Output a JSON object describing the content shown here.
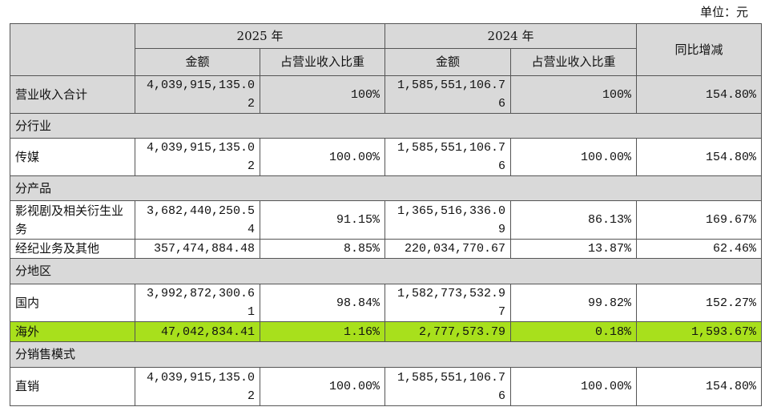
{
  "unit": "单位：元",
  "table": {
    "header": {
      "year1": "2025 年",
      "year2": "2024 年",
      "change": "同比增减",
      "amount1": "金额",
      "share1": "占营业收入比重",
      "amount2": "金额",
      "share2": "占营业收入比重"
    },
    "rows": [
      [
        "营业收入合计",
        "4,039,915,135.02",
        "100%",
        "1,585,551,106.76",
        "100%",
        "154.80%"
      ],
      [
        "分行业"
      ],
      [
        "传媒",
        "4,039,915,135.02",
        "100.00%",
        "1,585,551,106.76",
        "100.00%",
        "154.80%"
      ],
      [
        "分产品"
      ],
      [
        "影视剧及相关衍生业务",
        "3,682,440,250.54",
        "91.15%",
        "1,365,516,336.09",
        "86.13%",
        "169.67%"
      ],
      [
        "经纪业务及其他",
        "357,474,884.48",
        "8.85%",
        "220,034,770.67",
        "13.87%",
        "62.46%"
      ],
      [
        "分地区"
      ],
      [
        "国内",
        "3,992,872,300.61",
        "98.84%",
        "1,582,773,532.97",
        "99.82%",
        "152.27%"
      ],
      [
        "海外",
        "47,042,834.41",
        "1.16%",
        "2,777,573.79",
        "0.18%",
        "1,593.67%"
      ],
      [
        "分销售模式"
      ],
      [
        "直销",
        "4,039,915,135.02",
        "100.00%",
        "1,585,551,106.76",
        "100.00%",
        "154.80%"
      ]
    ]
  }
}
